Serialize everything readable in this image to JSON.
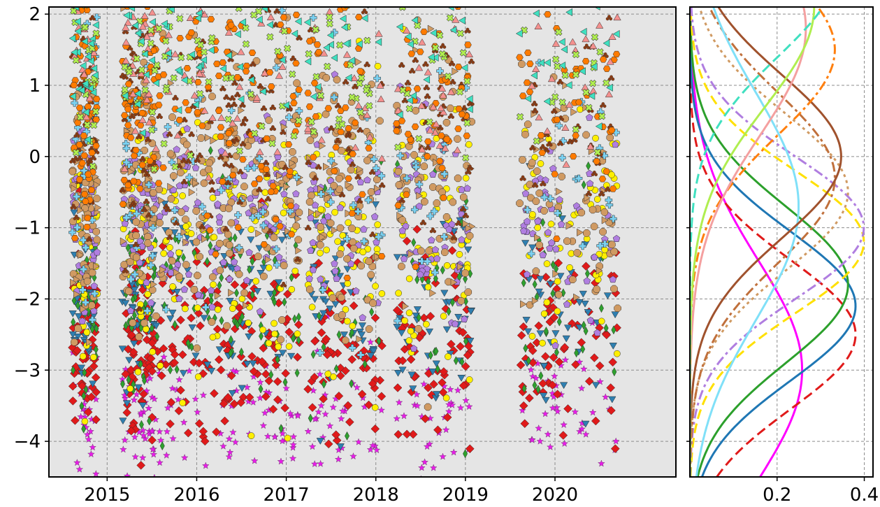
{
  "chart_data": [
    {
      "type": "scatter",
      "title": "",
      "xlabel": "",
      "ylabel": "",
      "xlim": [
        2014.35,
        2021.35
      ],
      "ylim": [
        -4.5,
        2.1
      ],
      "xticks": [
        {
          "value": 2015,
          "label": "2015"
        },
        {
          "value": 2016,
          "label": "2016"
        },
        {
          "value": 2017,
          "label": "2017"
        },
        {
          "value": 2018,
          "label": "2018"
        },
        {
          "value": 2019,
          "label": "2019"
        },
        {
          "value": 2020,
          "label": "2020"
        }
      ],
      "yticks": [
        {
          "value": 2,
          "label": "2"
        },
        {
          "value": 1,
          "label": "1"
        },
        {
          "value": 0,
          "label": "0"
        },
        {
          "value": -1,
          "label": "−1"
        },
        {
          "value": -2,
          "label": "−2"
        },
        {
          "value": -3,
          "label": "−3"
        },
        {
          "value": -4,
          "label": "−4"
        }
      ],
      "grid": true,
      "background": "#e5e5e5",
      "clusters": [
        {
          "x_center": 2014.75,
          "x_width": 0.14
        },
        {
          "x_center": 2015.35,
          "x_width": 0.18
        },
        {
          "x_center": 2015.95,
          "x_width": 0.45
        },
        {
          "x_center": 2016.75,
          "x_width": 0.4
        },
        {
          "x_center": 2017.65,
          "x_width": 0.42
        },
        {
          "x_center": 2018.65,
          "x_width": 0.42
        },
        {
          "x_center": 2020.15,
          "x_width": 0.55
        }
      ],
      "series": [
        {
          "marker": "star",
          "color": "#e81ce8",
          "y_mean": -3.6,
          "y_sd": 0.5,
          "n": 260
        },
        {
          "marker": "diamond",
          "color": "#e01a1a",
          "y_mean": -2.6,
          "y_sd": 0.7,
          "n": 480
        },
        {
          "marker": "triangle-down",
          "color": "#2f7fb0",
          "y_mean": -2.1,
          "y_sd": 0.7,
          "n": 260
        },
        {
          "marker": "thin-diamond",
          "color": "#2ea12e",
          "y_mean": -2.0,
          "y_sd": 0.8,
          "n": 260
        },
        {
          "marker": "circle",
          "color": "#ffef00",
          "y_mean": -1.2,
          "y_sd": 0.9,
          "n": 340
        },
        {
          "marker": "pentagon",
          "color": "#b07ee0",
          "y_mean": -0.9,
          "y_sd": 0.8,
          "n": 340
        },
        {
          "marker": "octagon",
          "color": "#d09a62",
          "y_mean": -0.6,
          "y_sd": 0.9,
          "n": 420
        },
        {
          "marker": "triangle-right",
          "color": "#d09a62",
          "y_mean": -0.4,
          "y_sd": 0.9,
          "n": 140
        },
        {
          "marker": "plus",
          "color": "#7ad0f0",
          "y_mean": -0.3,
          "y_sd": 1.1,
          "n": 170
        },
        {
          "marker": "club",
          "color": "#8b3c14",
          "y_mean": 0.5,
          "y_sd": 0.9,
          "n": 260
        },
        {
          "marker": "hexagon",
          "color": "#ff7b00",
          "y_mean": 0.8,
          "y_sd": 0.9,
          "n": 340
        },
        {
          "marker": "triangle-up",
          "color": "#f4908e",
          "y_mean": 1.2,
          "y_sd": 0.7,
          "n": 170
        },
        {
          "marker": "x-filled",
          "color": "#b0ee50",
          "y_mean": 1.3,
          "y_sd": 0.6,
          "n": 170
        },
        {
          "marker": "triangle-left",
          "color": "#40e0c0",
          "y_mean": 1.6,
          "y_sd": 0.5,
          "n": 140
        }
      ]
    },
    {
      "type": "line",
      "title": "",
      "xlabel": "",
      "ylabel": "",
      "orientation": "vertical-density",
      "xlim": [
        0.0,
        0.42
      ],
      "ylim": [
        -4.5,
        2.1
      ],
      "xticks": [
        {
          "value": 0.2,
          "label": "0.2"
        },
        {
          "value": 0.4,
          "label": "0.4"
        }
      ],
      "grid": true,
      "series": [
        {
          "color": "#ff00ff",
          "dash": "solid",
          "mean": -3.0,
          "sd": 1.55
        },
        {
          "color": "#e01a1a",
          "dash": "dashed",
          "mean": -2.5,
          "sd": 1.05
        },
        {
          "color": "#1f77b4",
          "dash": "solid",
          "mean": -2.1,
          "sd": 1.05
        },
        {
          "color": "#2ca02c",
          "dash": "solid",
          "mean": -1.8,
          "sd": 1.1
        },
        {
          "color": "#ffe000",
          "dash": "dashed",
          "mean": -1.2,
          "sd": 1.0
        },
        {
          "color": "#b07ee0",
          "dash": "dashdot",
          "mean": -1.0,
          "sd": 1.0
        },
        {
          "color": "#d09a62",
          "dash": "dotted",
          "mean": -0.5,
          "sd": 1.1
        },
        {
          "color": "#c0703c",
          "dash": "dashdot",
          "mean": -0.3,
          "sd": 1.2
        },
        {
          "color": "#80e0f8",
          "dash": "solid",
          "mean": -0.7,
          "sd": 1.6
        },
        {
          "color": "#a0522d",
          "dash": "solid",
          "mean": 0.0,
          "sd": 1.15
        },
        {
          "color": "#ff7f0e",
          "dash": "dashdot",
          "mean": 1.5,
          "sd": 1.2
        },
        {
          "color": "#f4a0a0",
          "dash": "solid",
          "mean": 1.8,
          "sd": 1.5
        },
        {
          "color": "#b0ee50",
          "dash": "solid",
          "mean": 2.1,
          "sd": 1.4
        },
        {
          "color": "#40e0c0",
          "dash": "dashed",
          "mean": 2.6,
          "sd": 1.2
        }
      ]
    }
  ]
}
